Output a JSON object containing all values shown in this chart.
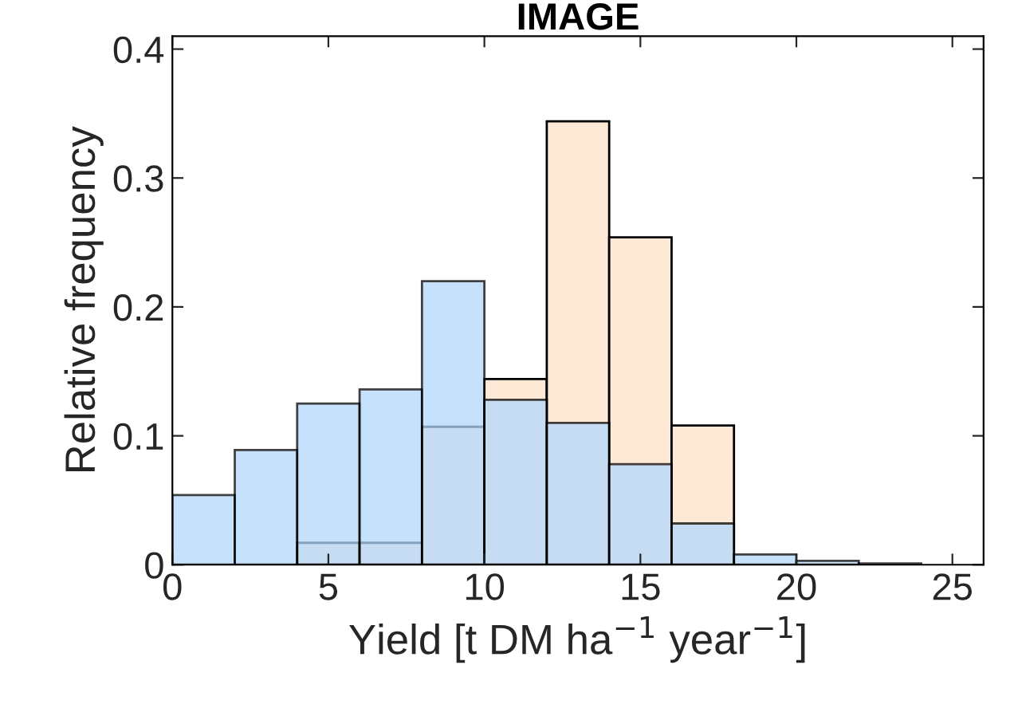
{
  "chart_data": {
    "type": "histogram",
    "title": "IMAGE",
    "xlabel": "Yield [t DM ha$^{−1}$ year$^{−1}$]",
    "ylabel": "Relative frequency",
    "bins": [
      0,
      2,
      4,
      6,
      8,
      10,
      12,
      14,
      16,
      18,
      20,
      22,
      24
    ],
    "series": [
      {
        "color": "#fde9d5",
        "values": [
          null,
          null,
          0.017,
          0.017,
          0.107,
          0.144,
          0.344,
          0.254,
          0.108,
          null,
          null,
          null
        ]
      },
      {
        "color": "#b3d7fb",
        "values": [
          0.054,
          0.089,
          0.125,
          0.136,
          0.22,
          0.128,
          0.11,
          0.078,
          0.032,
          0.008,
          0.003,
          0.001
        ]
      }
    ],
    "xlim": [
      0,
      26
    ],
    "ylim": [
      0,
      0.41
    ],
    "xticks": [
      0,
      5,
      10,
      15,
      20,
      25
    ],
    "yticks": [
      0,
      0.1,
      0.2,
      0.3,
      0.4
    ],
    "grid": false,
    "legend": false
  }
}
